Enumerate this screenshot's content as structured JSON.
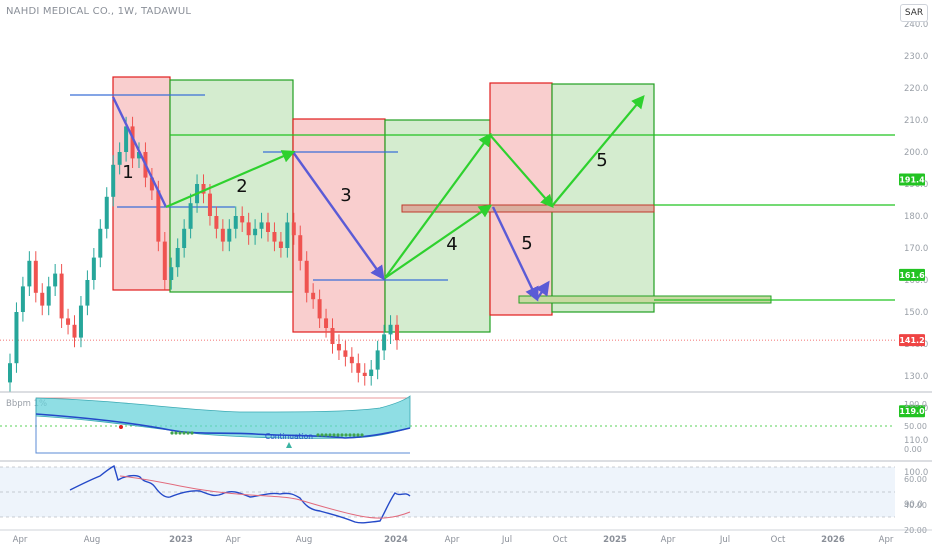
{
  "header": {
    "title": "NAHDI MEDICAL CO., 1W, TADAWUL",
    "currency": "SAR"
  },
  "chart_data": {
    "type": "candlestick",
    "price_axis": {
      "ticks": [
        "240.0",
        "230.0",
        "220.0",
        "210.0",
        "200.0",
        "190.0",
        "180.0",
        "170.0",
        "160.0",
        "150.0",
        "140.0",
        "130.0",
        "120.0",
        "110.0",
        "100.0",
        "90.0"
      ],
      "range": [
        85,
        242
      ]
    },
    "time_axis": {
      "labels": [
        "Apr",
        "Aug",
        "2023",
        "Apr",
        "Aug",
        "2024",
        "Apr",
        "Jul",
        "Oct",
        "2025",
        "Apr",
        "Jul",
        "Oct",
        "2026",
        "Apr"
      ]
    },
    "price_labels": [
      {
        "value": 191.4,
        "text": "191.4",
        "color": "#22c322"
      },
      {
        "value": 161.6,
        "text": "161.6",
        "color": "#22c322"
      },
      {
        "value": 141.2,
        "text": "141.2",
        "color": "#ef4444"
      },
      {
        "value": 119.0,
        "text": "119.0",
        "color": "#22c322"
      }
    ],
    "annotations": [
      {
        "text": "1"
      },
      {
        "text": "2"
      },
      {
        "text": "3"
      },
      {
        "text": "4"
      },
      {
        "text": "5"
      },
      {
        "text": "5"
      }
    ],
    "closes": [
      134,
      150,
      158,
      166,
      156,
      152,
      158,
      162,
      148,
      146,
      142,
      152,
      160,
      167,
      176,
      186,
      196,
      200,
      208,
      198,
      200,
      192,
      188,
      172,
      160,
      164,
      170,
      176,
      184,
      190,
      187,
      180,
      176,
      172,
      176,
      180,
      178,
      174,
      176,
      178,
      175,
      172,
      170,
      178,
      174,
      166,
      156,
      154,
      148,
      145,
      140,
      138,
      136,
      134,
      131,
      130,
      132,
      138,
      143,
      146,
      141.2
    ]
  },
  "bbpct": {
    "title": "Bbpm 1%",
    "ticks": [
      "100.0",
      "50.00",
      "0.00"
    ],
    "label": "Continuation"
  },
  "rsi": {
    "title": "RSI",
    "ticks": [
      "60.00",
      "40.00",
      "20.00"
    ]
  }
}
